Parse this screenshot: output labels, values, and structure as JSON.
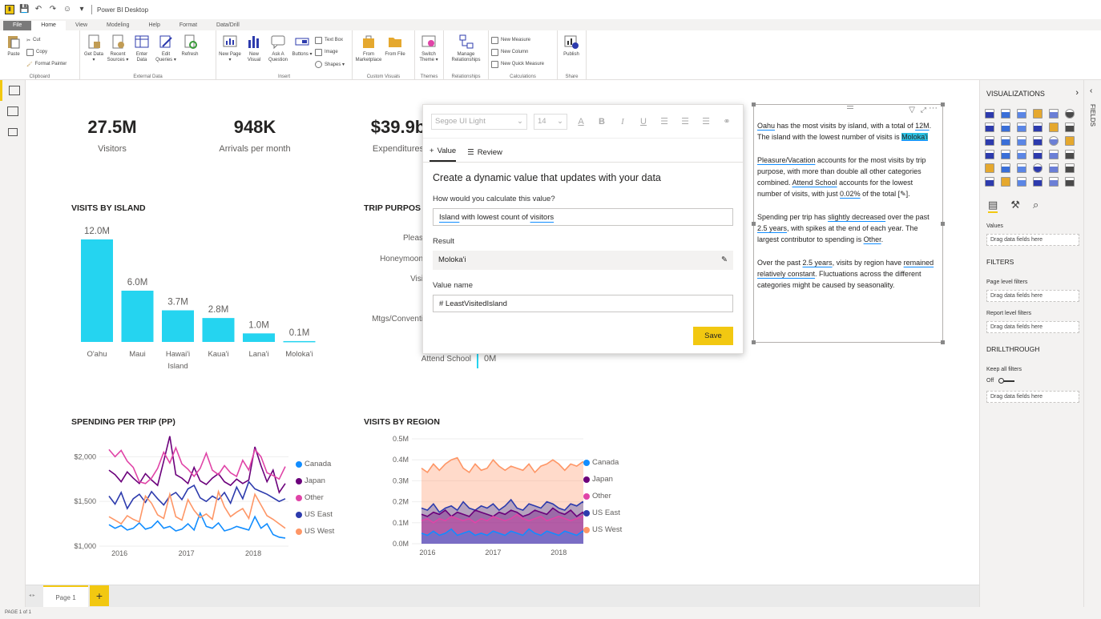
{
  "window": {
    "title": "Power BI Desktop"
  },
  "menu_tabs": [
    "File",
    "Home",
    "View",
    "Modeling",
    "Help",
    "Format",
    "Data/Drill"
  ],
  "ribbon": {
    "clipboard": {
      "paste": "Paste",
      "cut": "Cut",
      "copy": "Copy",
      "format_painter": "Format Painter",
      "label": "Clipboard"
    },
    "external_data": {
      "get_data": "Get Data ▾",
      "recent_sources": "Recent Sources ▾",
      "enter_data": "Enter Data",
      "edit_queries": "Edit Queries ▾",
      "refresh": "Refresh",
      "label": "External Data"
    },
    "insert": {
      "new_page": "New Page ▾",
      "new_visual": "New Visual",
      "ask_question": "Ask A Question",
      "buttons": "Buttons ▾",
      "text_box": "Text Box",
      "image": "Image",
      "shapes": "Shapes ▾",
      "label": "Insert"
    },
    "custom_visuals": {
      "from_marketplace": "From Marketplace",
      "from_file": "From File",
      "label": "Custom Visuals"
    },
    "themes": {
      "switch_theme": "Switch Theme ▾",
      "label": "Themes"
    },
    "relationships": {
      "manage": "Manage Relationships",
      "label": "Relationships"
    },
    "calculations": {
      "new_measure": "New Measure",
      "new_column": "New Column",
      "new_quick_measure": "New Quick Measure",
      "label": "Calculations"
    },
    "share": {
      "publish": "Publish",
      "label": "Share"
    }
  },
  "kpis": [
    {
      "value": "27.5M",
      "label": "Visitors"
    },
    {
      "value": "948K",
      "label": "Arrivals per month"
    },
    {
      "value": "$39.9b",
      "label": "Expenditures"
    }
  ],
  "visits_by_island": {
    "title": "VISITS BY ISLAND",
    "chart_data": {
      "type": "bar",
      "categories": [
        "O'ahu",
        "Maui",
        "Hawai'i Island",
        "Kaua'i",
        "Lana'i",
        "Moloka'i"
      ],
      "values": [
        12.0,
        6.0,
        3.7,
        2.8,
        1.0,
        0.1
      ],
      "data_labels": [
        "12.0M",
        "6.0M",
        "3.7M",
        "2.8M",
        "1.0M",
        "0.1M"
      ],
      "color": "#25d4f0"
    }
  },
  "trip_purpose": {
    "title": "TRIP PURPOS",
    "visible_labels": [
      "Pleas",
      "Honeymoon",
      "Visi",
      "Mtgs/Conventi",
      "Attend School"
    ],
    "visible_value": "0M"
  },
  "spending_per_trip": {
    "title": "SPENDING PER TRIP (PP)",
    "chart_data": {
      "type": "line",
      "x_ticks": [
        "2016",
        "2017",
        "2018"
      ],
      "y_ticks": [
        "$1,000",
        "$1,500",
        "$2,000"
      ],
      "ylim": [
        1000,
        2200
      ],
      "series": [
        {
          "name": "Canada",
          "color": "#118dff",
          "values": [
            1240,
            1200,
            1230,
            1180,
            1200,
            1260,
            1190,
            1210,
            1280,
            1200,
            1220,
            1170,
            1190,
            1250,
            1180,
            1370,
            1220,
            1200,
            1260,
            1170,
            1190,
            1220,
            1200,
            1180,
            1330,
            1200,
            1250,
            1130,
            1100,
            1090
          ]
        },
        {
          "name": "Japan",
          "color": "#6b007b",
          "values": [
            1850,
            1800,
            1720,
            1830,
            1760,
            1700,
            1810,
            1740,
            1680,
            1950,
            2230,
            1800,
            1760,
            1700,
            1880,
            1730,
            1690,
            1760,
            1810,
            1720,
            1680,
            1750,
            1700,
            1740,
            2110,
            1900,
            1720,
            1850,
            1600,
            1700
          ]
        },
        {
          "name": "Other",
          "color": "#e044a7",
          "values": [
            2080,
            2000,
            2070,
            1950,
            1880,
            1720,
            1700,
            1760,
            1870,
            2050,
            1930,
            2100,
            1920,
            1860,
            1780,
            1870,
            2040,
            1850,
            1800,
            1900,
            1820,
            1780,
            1960,
            1850,
            2080,
            2000,
            1820,
            1790,
            1750,
            1890
          ]
        },
        {
          "name": "US East",
          "color": "#2d3bad",
          "values": [
            1560,
            1470,
            1600,
            1420,
            1530,
            1580,
            1490,
            1610,
            1530,
            1460,
            1560,
            1600,
            1520,
            1640,
            1680,
            1540,
            1500,
            1560,
            1520,
            1600,
            1480,
            1660,
            1530,
            1720,
            1640,
            1610,
            1580,
            1540,
            1500,
            1530
          ]
        },
        {
          "name": "US West",
          "color": "#fe9666",
          "values": [
            1330,
            1290,
            1250,
            1340,
            1300,
            1270,
            1560,
            1480,
            1350,
            1310,
            1580,
            1330,
            1290,
            1520,
            1400,
            1320,
            1360,
            1300,
            1610,
            1440,
            1330,
            1380,
            1420,
            1310,
            1580,
            1460,
            1340,
            1300,
            1250,
            1200
          ]
        }
      ]
    }
  },
  "visits_by_region": {
    "title": "VISITS BY REGION",
    "chart_data": {
      "type": "area",
      "x_ticks": [
        "2016",
        "2017",
        "2018"
      ],
      "y_ticks": [
        "0.0M",
        "0.1M",
        "0.2M",
        "0.3M",
        "0.4M",
        "0.5M"
      ],
      "ylim": [
        0,
        0.5
      ],
      "series": [
        {
          "name": "Canada",
          "color": "#118dff",
          "values": [
            0.05,
            0.04,
            0.06,
            0.04,
            0.05,
            0.07,
            0.04,
            0.05,
            0.06,
            0.04,
            0.05,
            0.04,
            0.06,
            0.05,
            0.04,
            0.06,
            0.05,
            0.04,
            0.07,
            0.05,
            0.04,
            0.06,
            0.05,
            0.04,
            0.06,
            0.05,
            0.04,
            0.06,
            0.05,
            0.04
          ]
        },
        {
          "name": "Japan",
          "color": "#6b007b",
          "values": [
            0.14,
            0.13,
            0.15,
            0.14,
            0.16,
            0.13,
            0.15,
            0.14,
            0.13,
            0.16,
            0.15,
            0.14,
            0.13,
            0.15,
            0.14,
            0.16,
            0.15,
            0.13,
            0.14,
            0.16,
            0.15,
            0.14,
            0.17,
            0.15,
            0.14,
            0.16,
            0.13,
            0.15,
            0.11,
            0.16
          ]
        },
        {
          "name": "Other",
          "color": "#e044a7",
          "values": [
            0.11,
            0.12,
            0.1,
            0.12,
            0.11,
            0.13,
            0.12,
            0.11,
            0.12,
            0.1,
            0.12,
            0.11,
            0.13,
            0.12,
            0.11,
            0.12,
            0.14,
            0.12,
            0.11,
            0.12,
            0.13,
            0.11,
            0.12,
            0.13,
            0.12,
            0.11,
            0.12,
            0.13,
            0.12,
            0.11
          ]
        },
        {
          "name": "US East",
          "color": "#2d3bad",
          "values": [
            0.17,
            0.16,
            0.19,
            0.15,
            0.17,
            0.18,
            0.16,
            0.2,
            0.17,
            0.16,
            0.18,
            0.17,
            0.19,
            0.16,
            0.18,
            0.21,
            0.17,
            0.16,
            0.19,
            0.18,
            0.17,
            0.2,
            0.19,
            0.17,
            0.16,
            0.19,
            0.18,
            0.2,
            0.17,
            0.19
          ]
        },
        {
          "name": "US West",
          "color": "#fe9666",
          "values": [
            0.36,
            0.34,
            0.38,
            0.35,
            0.38,
            0.4,
            0.41,
            0.36,
            0.34,
            0.38,
            0.35,
            0.36,
            0.4,
            0.37,
            0.35,
            0.37,
            0.36,
            0.35,
            0.38,
            0.34,
            0.37,
            0.38,
            0.4,
            0.38,
            0.35,
            0.38,
            0.37,
            0.39,
            0.38,
            0.38
          ]
        }
      ]
    }
  },
  "qa_panel": {
    "font_family": "Segoe UI Light",
    "font_size": "14",
    "tabs": [
      "Value",
      "Review"
    ],
    "heading": "Create a dynamic value that updates with your data",
    "question_label": "How would you calculate this value?",
    "question_parts": [
      "Island",
      " with lowest count of ",
      "visitors"
    ],
    "result_label": "Result",
    "result_value": "Moloka'i",
    "value_name_label": "Value name",
    "value_name": "# LeastVisitedIsland",
    "save": "Save"
  },
  "narrative": {
    "p1": [
      "Oahu",
      " has the most visits by island, with a total of ",
      "12M",
      ". The island with the lowest number of visits is ",
      "Moloka'i"
    ],
    "p2": [
      "Pleasure/Vacation",
      " accounts for the most visits by trip purpose, with more than double all other categories combined. ",
      "Attend School",
      " accounts for the lowest number of visits, with just ",
      "0.02%",
      " of the total ",
      "[✎]",
      "."
    ],
    "p3": [
      "Spending per trip has ",
      "slightly decreased",
      " over the past ",
      "2.5 years",
      ", with spikes at the end of each year. The largest contributor to spending is ",
      "Other",
      "."
    ],
    "p4": [
      "Over the past ",
      "2.5 years",
      ", visits by region have ",
      "remained relatively constant",
      ". Fluctuations across the different categories might be caused by seasonality."
    ]
  },
  "viz_pane": {
    "title": "VISUALIZATIONS",
    "values_label": "Values",
    "drag_fields": "Drag data fields here",
    "filters": "FILTERS",
    "page_level_filters": "Page level filters",
    "report_level_filters": "Report level filters",
    "drillthrough": "DRILLTHROUGH",
    "keep_all_filters": "Keep all filters",
    "off": "Off"
  },
  "fields_pane": {
    "title": "FIELDS"
  },
  "pages": {
    "current": "Page 1",
    "add": "+"
  },
  "status": {
    "text": "PAGE 1 of 1"
  }
}
